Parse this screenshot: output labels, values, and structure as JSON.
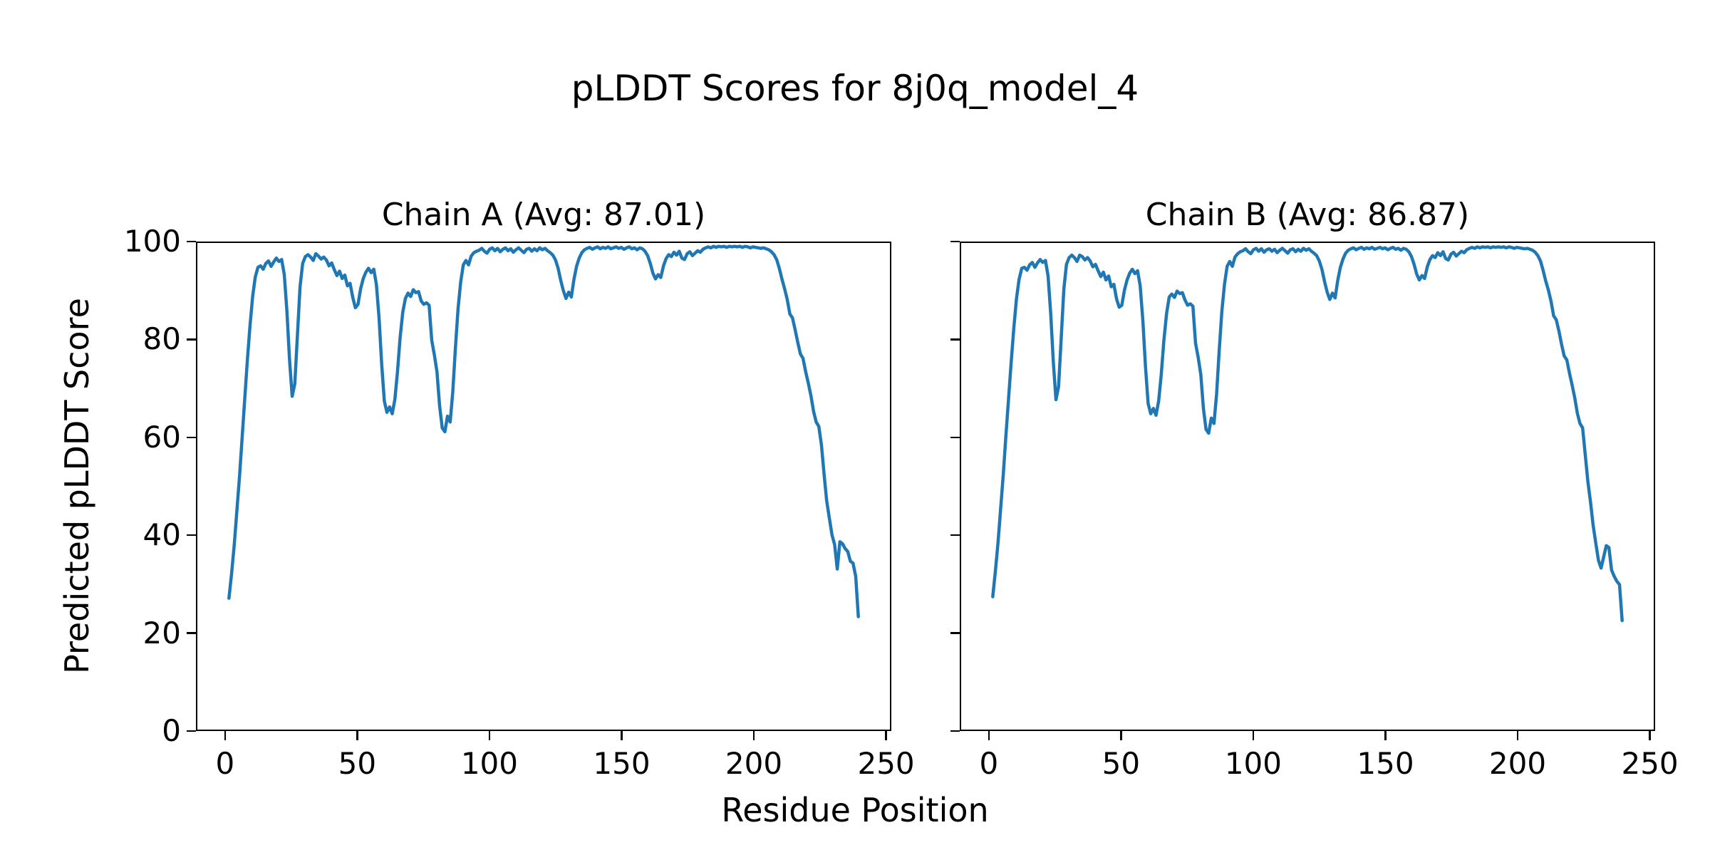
{
  "figure": {
    "suptitle": "pLDDT Scores for 8j0q_model_4",
    "xlabel": "Residue Position",
    "ylabel": "Predicted pLDDT Score",
    "background_color": "#ffffff",
    "line_color": "#1f77b4",
    "spine_color": "#000000"
  },
  "chart_data": [
    {
      "type": "line",
      "title": "Chain A (Avg: 87.01)",
      "chain": "A",
      "average_plddt": 87.01,
      "xlabel": "Residue Position",
      "ylabel": "Predicted pLDDT Score",
      "xlim": [
        -11,
        252
      ],
      "ylim": [
        0,
        100
      ],
      "xticks": [
        0,
        50,
        100,
        150,
        200,
        250
      ],
      "yticks": [
        0,
        20,
        40,
        60,
        80,
        100
      ],
      "show_yticklabels": true,
      "grid": false,
      "legend": "none",
      "x_start": 1,
      "x_step": 1,
      "values": [
        27.0,
        32.0,
        38.0,
        45.0,
        52.0,
        60.0,
        68.0,
        76.0,
        83.0,
        89.0,
        93.0,
        95.0,
        95.3,
        94.6,
        95.8,
        96.3,
        95.2,
        96.1,
        96.9,
        96.2,
        96.6,
        93.5,
        86.0,
        76.0,
        68.5,
        71.0,
        81.0,
        91.0,
        95.8,
        97.2,
        97.6,
        97.1,
        96.4,
        97.8,
        97.3,
        96.7,
        97.1,
        96.5,
        95.3,
        95.9,
        94.5,
        93.3,
        94.2,
        92.7,
        93.4,
        91.2,
        91.7,
        88.8,
        86.7,
        87.4,
        90.6,
        92.7,
        94.0,
        94.8,
        93.9,
        94.6,
        91.5,
        84.5,
        75.0,
        67.5,
        65.2,
        66.3,
        64.9,
        67.8,
        73.5,
        80.5,
        85.8,
        88.6,
        89.7,
        89.0,
        90.4,
        89.8,
        90.0,
        88.1,
        87.4,
        87.7,
        87.2,
        80.0,
        77.0,
        73.5,
        66.5,
        62.0,
        61.2,
        64.4,
        63.2,
        69.5,
        78.5,
        86.5,
        92.0,
        95.5,
        96.4,
        95.5,
        97.3,
        98.0,
        98.3,
        98.5,
        98.9,
        98.3,
        97.9,
        98.7,
        99.0,
        98.4,
        98.9,
        98.2,
        98.7,
        99.0,
        98.4,
        98.8,
        98.1,
        98.6,
        99.0,
        98.5,
        98.0,
        98.7,
        98.9,
        98.3,
        98.8,
        98.4,
        99.0,
        98.6,
        98.9,
        98.4,
        98.0,
        97.5,
        96.5,
        94.8,
        92.3,
        90.2,
        88.6,
        89.9,
        88.9,
        92.5,
        95.2,
        96.9,
        98.0,
        98.6,
        98.9,
        99.1,
        98.7,
        99.0,
        99.2,
        98.8,
        99.1,
        98.9,
        99.2,
        98.8,
        99.0,
        99.2,
        98.9,
        99.1,
        98.7,
        99.0,
        99.2,
        98.8,
        99.0,
        98.6,
        99.0,
        98.8,
        98.3,
        97.4,
        95.8,
        93.8,
        92.6,
        93.5,
        92.9,
        95.3,
        96.8,
        97.6,
        97.2,
        98.1,
        97.5,
        98.3,
        96.9,
        96.6,
        97.8,
        98.2,
        97.4,
        97.9,
        98.4,
        98.1,
        98.7,
        99.0,
        99.2,
        99.0,
        99.3,
        99.1,
        99.3,
        99.2,
        99.3,
        99.1,
        99.3,
        99.2,
        99.3,
        99.2,
        99.3,
        99.1,
        99.3,
        99.2,
        99.0,
        99.2,
        99.1,
        99.0,
        98.9,
        99.0,
        98.8,
        98.6,
        98.2,
        97.6,
        96.6,
        94.8,
        92.6,
        90.6,
        88.4,
        85.4,
        84.6,
        82.2,
        79.6,
        77.2,
        76.3,
        73.6,
        71.2,
        68.6,
        65.4,
        63.2,
        62.3,
        58.5,
        52.5,
        47.0,
        43.5,
        40.0,
        38.0,
        33.0,
        38.6,
        38.2,
        37.2,
        36.6,
        34.6,
        34.2,
        31.5,
        23.2
      ]
    },
    {
      "type": "line",
      "title": "Chain B (Avg: 86.87)",
      "chain": "B",
      "average_plddt": 86.87,
      "xlabel": "Residue Position",
      "ylabel": "Predicted pLDDT Score",
      "xlim": [
        -11,
        252
      ],
      "ylim": [
        0,
        100
      ],
      "xticks": [
        0,
        50,
        100,
        150,
        200,
        250
      ],
      "yticks": [
        0,
        20,
        40,
        60,
        80,
        100
      ],
      "show_yticklabels": false,
      "grid": false,
      "legend": "none",
      "x_start": 1,
      "x_step": 1,
      "values": [
        27.3,
        32.5,
        38.5,
        45.5,
        52.5,
        60.5,
        68.0,
        75.5,
        82.5,
        88.5,
        92.5,
        94.8,
        95.0,
        94.4,
        95.5,
        96.0,
        95.0,
        95.9,
        96.6,
        96.0,
        96.4,
        93.2,
        85.5,
        75.5,
        67.8,
        70.5,
        80.5,
        90.5,
        95.6,
        97.0,
        97.5,
        97.0,
        96.2,
        97.5,
        97.2,
        96.5,
        97.0,
        96.3,
        95.1,
        95.6,
        94.3,
        93.1,
        94.0,
        92.4,
        93.2,
        91.0,
        91.5,
        88.5,
        86.8,
        87.2,
        90.3,
        92.4,
        93.8,
        94.6,
        93.7,
        94.3,
        91.2,
        84.0,
        74.5,
        67.0,
        64.9,
        66.0,
        64.6,
        67.5,
        73.0,
        80.0,
        85.5,
        88.9,
        89.5,
        88.8,
        90.1,
        89.6,
        89.8,
        88.3,
        87.2,
        87.5,
        87.0,
        79.4,
        76.5,
        73.0,
        66.0,
        61.7,
        60.9,
        64.0,
        62.9,
        69.0,
        78.0,
        86.0,
        91.5,
        95.2,
        96.2,
        95.2,
        97.1,
        97.8,
        98.2,
        98.4,
        98.8,
        98.2,
        97.8,
        98.6,
        98.9,
        98.3,
        98.8,
        98.1,
        98.6,
        98.8,
        98.3,
        98.7,
        98.0,
        98.5,
        98.9,
        98.4,
        97.9,
        98.6,
        98.8,
        98.2,
        98.7,
        98.3,
        98.9,
        98.5,
        98.8,
        98.3,
        97.9,
        97.4,
        96.3,
        94.6,
        92.1,
        89.9,
        88.4,
        89.7,
        88.7,
        92.3,
        95.0,
        96.7,
        97.9,
        98.5,
        98.8,
        99.0,
        98.6,
        98.9,
        99.1,
        98.7,
        99.0,
        98.8,
        99.1,
        98.7,
        98.9,
        99.1,
        98.8,
        99.0,
        98.6,
        98.9,
        99.1,
        98.7,
        98.9,
        98.5,
        98.9,
        98.7,
        98.2,
        97.2,
        95.6,
        93.6,
        92.4,
        93.3,
        92.7,
        95.1,
        96.6,
        97.4,
        97.0,
        98.0,
        97.4,
        98.2,
        96.8,
        96.5,
        97.7,
        98.1,
        97.3,
        97.8,
        98.3,
        98.0,
        98.6,
        98.9,
        99.1,
        98.9,
        99.2,
        99.0,
        99.2,
        99.1,
        99.2,
        99.0,
        99.2,
        99.1,
        99.2,
        99.1,
        99.2,
        99.0,
        99.2,
        99.1,
        98.9,
        99.1,
        99.0,
        98.9,
        98.8,
        98.9,
        98.7,
        98.5,
        98.1,
        97.4,
        96.3,
        94.4,
        92.2,
        90.3,
        88.0,
        85.0,
        84.2,
        81.9,
        79.2,
        76.8,
        76.0,
        73.3,
        70.8,
        68.2,
        65.0,
        62.9,
        62.0,
        56.5,
        51.0,
        46.8,
        42.0,
        38.3,
        34.8,
        33.2,
        35.5,
        37.8,
        37.4,
        32.8,
        31.5,
        30.5,
        29.8,
        22.4
      ]
    }
  ]
}
